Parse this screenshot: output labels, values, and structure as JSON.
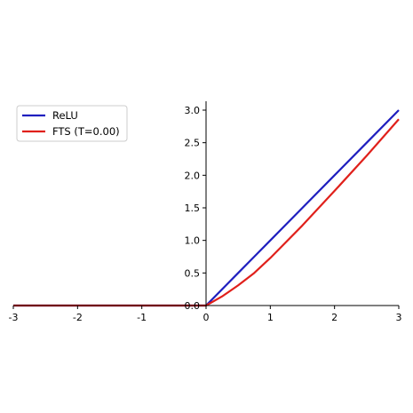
{
  "chart_data": {
    "type": "line",
    "title": "",
    "xlabel": "",
    "ylabel": "",
    "xlim": [
      -3,
      3
    ],
    "ylim": [
      0,
      3.15
    ],
    "grid": false,
    "legend_position": "top-left",
    "x_ticks": [
      "-3",
      "-2",
      "-1",
      "0",
      "1",
      "2",
      "3"
    ],
    "y_ticks": [
      "0.0",
      "0.5",
      "1.0",
      "1.5",
      "2.0",
      "2.5",
      "3.0"
    ],
    "x": [
      -3,
      -2,
      -1,
      0,
      0.25,
      0.5,
      0.75,
      1,
      1.5,
      2,
      2.5,
      3
    ],
    "series": [
      {
        "name": "ReLU",
        "color": "#1f1fbf",
        "values": [
          0,
          0,
          0,
          0,
          0.25,
          0.5,
          0.75,
          1,
          1.5,
          2,
          2.5,
          3
        ]
      },
      {
        "name": "FTS (T=0.00)",
        "color": "#e0201b",
        "values": [
          0,
          0,
          0,
          0,
          0.14,
          0.31,
          0.5,
          0.73,
          1.23,
          1.76,
          2.3,
          2.86
        ]
      }
    ]
  }
}
